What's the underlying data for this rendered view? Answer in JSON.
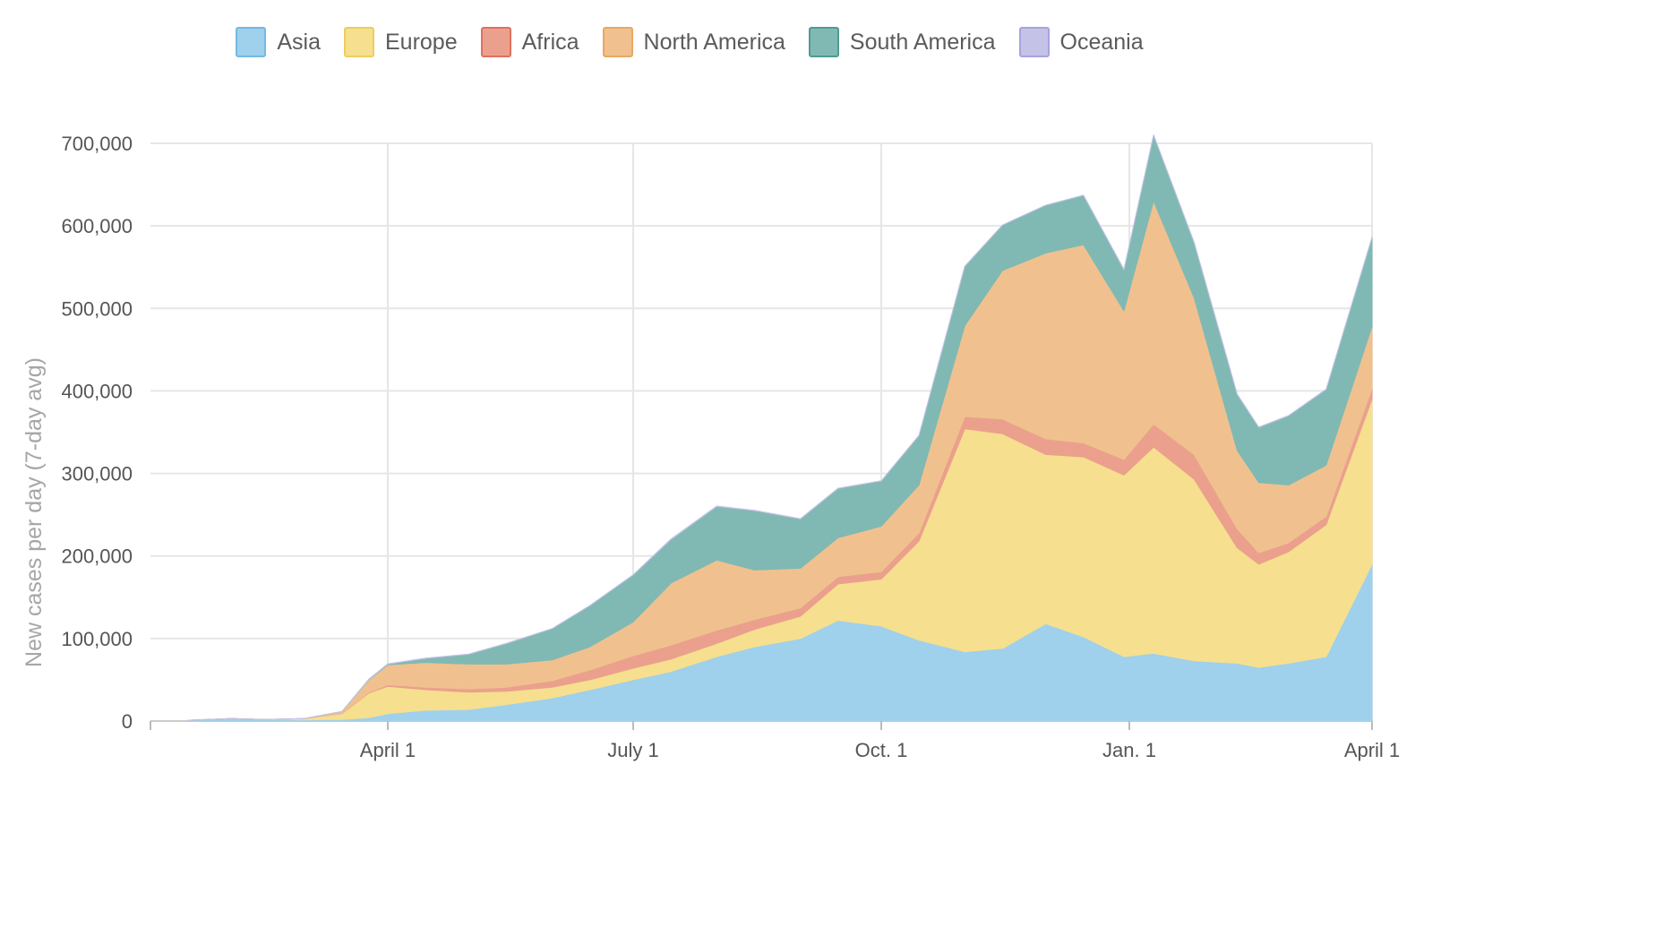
{
  "legend": [
    {
      "name": "Asia",
      "fill": "#9fd0ec",
      "stroke": "#74b9e3"
    },
    {
      "name": "Europe",
      "fill": "#f6df8e",
      "stroke": "#efcd5e"
    },
    {
      "name": "Africa",
      "fill": "#eba08d",
      "stroke": "#e0705d"
    },
    {
      "name": "North America",
      "fill": "#f0c18e",
      "stroke": "#e8a865"
    },
    {
      "name": "South America",
      "fill": "#80b9b3",
      "stroke": "#4f9a93"
    },
    {
      "name": "Oceania",
      "fill": "#c5c2e8",
      "stroke": "#a7a3dd"
    }
  ],
  "chart_data": {
    "type": "area",
    "stacked": true,
    "title": "",
    "xlabel": "",
    "ylabel": "New cases per day (7-day avg)",
    "ylim": [
      0,
      700000
    ],
    "yticks": [
      0,
      100000,
      200000,
      300000,
      400000,
      500000,
      600000,
      700000
    ],
    "ytick_labels": [
      "0",
      "100,000",
      "200,000",
      "300,000",
      "400,000",
      "500,000",
      "600,000",
      "700,000"
    ],
    "xlim": [
      "2020-01-04",
      "2021-04-01"
    ],
    "xticks": [
      "2020-04-01",
      "2020-07-01",
      "2020-10-01",
      "2021-01-01",
      "2021-04-01"
    ],
    "xtick_labels": [
      "April 1",
      "July 1",
      "Oct. 1",
      "Jan. 1",
      "April 1"
    ],
    "grid": true,
    "legend_position": "top",
    "x": [
      "2020-01-18",
      "2020-02-03",
      "2020-02-15",
      "2020-03-01",
      "2020-03-15",
      "2020-03-25",
      "2020-04-01",
      "2020-04-15",
      "2020-05-01",
      "2020-05-15",
      "2020-06-01",
      "2020-06-15",
      "2020-07-01",
      "2020-07-15",
      "2020-08-01",
      "2020-08-15",
      "2020-09-01",
      "2020-09-15",
      "2020-10-01",
      "2020-10-15",
      "2020-11-01",
      "2020-11-15",
      "2020-12-01",
      "2020-12-15",
      "2020-12-30",
      "2021-01-10",
      "2021-01-25",
      "2021-02-10",
      "2021-02-18",
      "2021-03-01",
      "2021-03-15",
      "2021-04-01"
    ],
    "series": [
      {
        "name": "Asia",
        "values": [
          1000,
          3000,
          2000,
          1500,
          2000,
          4000,
          9000,
          13000,
          14000,
          20000,
          28000,
          38000,
          50000,
          60000,
          78000,
          90000,
          100000,
          122000,
          115000,
          98000,
          84000,
          88000,
          118000,
          102000,
          78000,
          82000,
          73000,
          70000,
          65000,
          70000,
          78000,
          190000
        ]
      },
      {
        "name": "Europe",
        "values": [
          0,
          0,
          0,
          1500,
          7000,
          30000,
          33000,
          25000,
          21000,
          16000,
          13000,
          12000,
          14000,
          15000,
          16000,
          21000,
          27000,
          44000,
          57000,
          120000,
          270000,
          260000,
          205000,
          218000,
          220000,
          250000,
          220000,
          140000,
          125000,
          135000,
          160000,
          200000
        ]
      },
      {
        "name": "Africa",
        "values": [
          0,
          0,
          0,
          0,
          500,
          1000,
          2000,
          3000,
          4000,
          5000,
          8000,
          12000,
          15000,
          17000,
          16000,
          12000,
          10000,
          9000,
          9000,
          10000,
          15000,
          18000,
          19000,
          17000,
          19000,
          28000,
          30000,
          23000,
          14000,
          11000,
          10000,
          13000
        ]
      },
      {
        "name": "North America",
        "values": [
          0,
          0,
          0,
          0,
          2000,
          15000,
          24000,
          30000,
          30000,
          28000,
          25000,
          28000,
          41000,
          75000,
          85000,
          60000,
          48000,
          47000,
          55000,
          58000,
          110000,
          180000,
          225000,
          240000,
          180000,
          270000,
          190000,
          95000,
          85000,
          70000,
          62000,
          75000
        ]
      },
      {
        "name": "South America",
        "values": [
          0,
          0,
          0,
          0,
          0,
          600,
          1000,
          5000,
          12000,
          25000,
          38000,
          50000,
          57000,
          53000,
          65000,
          72000,
          60000,
          60000,
          55000,
          60000,
          72000,
          55000,
          58000,
          60000,
          50000,
          80000,
          67000,
          68000,
          67000,
          84000,
          92000,
          108000
        ]
      },
      {
        "name": "Oceania",
        "values": [
          0,
          0,
          0,
          0,
          0,
          200,
          400,
          300,
          100,
          50,
          50,
          100,
          300,
          500,
          600,
          300,
          200,
          100,
          50,
          50,
          50,
          50,
          50,
          50,
          50,
          50,
          50,
          50,
          50,
          50,
          50,
          100
        ]
      }
    ]
  }
}
